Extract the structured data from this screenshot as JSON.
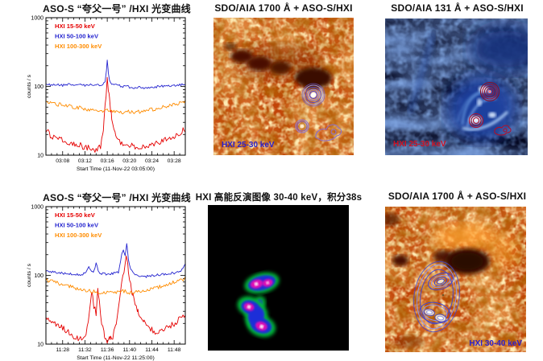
{
  "figure": {
    "background": "#ffffff"
  },
  "chart_data": [
    {
      "type": "line",
      "title": "ASO-S “夸父一号” /HXI 光变曲线",
      "xlabel": "Start Time (11-Nov-22 03:05:00)",
      "ylabel": "counts / s",
      "yscale": "log",
      "xlim": [
        0,
        25
      ],
      "ylim": [
        10,
        1000
      ],
      "x_unit": "minutes after 03:05:00",
      "grid": false,
      "legend_position": "top-left",
      "xticks": [
        {
          "x": 3,
          "label": "03:08"
        },
        {
          "x": 7,
          "label": "03:12"
        },
        {
          "x": 11,
          "label": "03:16"
        },
        {
          "x": 15,
          "label": "03:20"
        },
        {
          "x": 19,
          "label": "03:24"
        },
        {
          "x": 23,
          "label": "03:28"
        }
      ],
      "yticks": [
        {
          "y": 10,
          "label": "10"
        },
        {
          "y": 100,
          "label": "100"
        },
        {
          "y": 1000,
          "label": "1000"
        }
      ],
      "series": [
        {
          "name": "HXI 15-50 keV",
          "color": "#e50000",
          "points": [
            [
              0,
              23
            ],
            [
              1,
              19
            ],
            [
              2,
              17
            ],
            [
              3,
              17
            ],
            [
              4,
              15
            ],
            [
              5,
              14
            ],
            [
              6,
              14
            ],
            [
              7,
              13
            ],
            [
              8,
              13
            ],
            [
              9,
              12
            ],
            [
              9.8,
              13
            ],
            [
              10.3,
              25
            ],
            [
              10.6,
              50
            ],
            [
              11,
              125
            ],
            [
              11.3,
              75
            ],
            [
              11.7,
              40
            ],
            [
              12,
              26
            ],
            [
              12.5,
              19
            ],
            [
              13,
              16
            ],
            [
              14,
              15
            ],
            [
              15,
              14
            ],
            [
              16,
              13
            ],
            [
              17,
              13
            ],
            [
              18,
              13
            ],
            [
              19,
              14
            ],
            [
              20,
              15
            ],
            [
              21,
              16
            ],
            [
              22,
              17
            ],
            [
              23,
              19
            ],
            [
              24,
              21
            ],
            [
              25,
              24
            ]
          ]
        },
        {
          "name": "HXI 50-100 keV",
          "color": "#2424cf",
          "points": [
            [
              0,
              108
            ],
            [
              1,
              106
            ],
            [
              2,
              108
            ],
            [
              3,
              104
            ],
            [
              4,
              107
            ],
            [
              5,
              104
            ],
            [
              6,
              106
            ],
            [
              7,
              103
            ],
            [
              8,
              105
            ],
            [
              9,
              104
            ],
            [
              10,
              106
            ],
            [
              10.6,
              112
            ],
            [
              10.85,
              170
            ],
            [
              11,
              245
            ],
            [
              11.15,
              170
            ],
            [
              11.4,
              120
            ],
            [
              12,
              107
            ],
            [
              13,
              103
            ],
            [
              14,
              100
            ],
            [
              15,
              98
            ],
            [
              16,
              96
            ],
            [
              17,
              97
            ],
            [
              18,
              95
            ],
            [
              19,
              97
            ],
            [
              20,
              99
            ],
            [
              21,
              101
            ],
            [
              22,
              102
            ],
            [
              23,
              104
            ],
            [
              24,
              105
            ],
            [
              25,
              108
            ]
          ]
        },
        {
          "name": "HXI 100-300 keV",
          "color": "#ff8c00",
          "points": [
            [
              0,
              60
            ],
            [
              1,
              57
            ],
            [
              2,
              55
            ],
            [
              3,
              54
            ],
            [
              4,
              52
            ],
            [
              5,
              50
            ],
            [
              6,
              49
            ],
            [
              7,
              47
            ],
            [
              8,
              46
            ],
            [
              9,
              45
            ],
            [
              10,
              44
            ],
            [
              11,
              45
            ],
            [
              12,
              43
            ],
            [
              13,
              42
            ],
            [
              14,
              42
            ],
            [
              15,
              43
            ],
            [
              16,
              42
            ],
            [
              17,
              43
            ],
            [
              18,
              45
            ],
            [
              19,
              46
            ],
            [
              20,
              48
            ],
            [
              21,
              50
            ],
            [
              22,
              53
            ],
            [
              23,
              55
            ],
            [
              24,
              58
            ],
            [
              25,
              62
            ]
          ]
        }
      ]
    },
    {
      "type": "line",
      "title": "ASO-S “夸父一号” /HXI 光变曲线",
      "xlabel": "Start Time (11-Nov-22 11:25:00)",
      "ylabel": "counts / s",
      "yscale": "log",
      "xlim": [
        0,
        25
      ],
      "ylim": [
        10,
        1000
      ],
      "x_unit": "minutes after 11:25:00",
      "grid": false,
      "legend_position": "top-left",
      "xticks": [
        {
          "x": 3,
          "label": "11:28"
        },
        {
          "x": 7,
          "label": "11:32"
        },
        {
          "x": 11,
          "label": "11:36"
        },
        {
          "x": 15,
          "label": "11:40"
        },
        {
          "x": 19,
          "label": "11:44"
        },
        {
          "x": 23,
          "label": "11:48"
        }
      ],
      "yticks": [
        {
          "y": 10,
          "label": "10"
        },
        {
          "y": 100,
          "label": "100"
        },
        {
          "y": 1000,
          "label": "1000"
        }
      ],
      "series": [
        {
          "name": "HXI 15-50 keV",
          "color": "#e50000",
          "points": [
            [
              0,
              26
            ],
            [
              1,
              22
            ],
            [
              2,
              19
            ],
            [
              3,
              17
            ],
            [
              4,
              15
            ],
            [
              5,
              13
            ],
            [
              6,
              12
            ],
            [
              7,
              13
            ],
            [
              7.6,
              20
            ],
            [
              8,
              45
            ],
            [
              8.3,
              58
            ],
            [
              8.6,
              36
            ],
            [
              9,
              28
            ],
            [
              9.3,
              60
            ],
            [
              9.6,
              42
            ],
            [
              10,
              20
            ],
            [
              10.5,
              13
            ],
            [
              11,
              11
            ],
            [
              11.5,
              12
            ],
            [
              12,
              13
            ],
            [
              12.5,
              18
            ],
            [
              13,
              35
            ],
            [
              13.5,
              70
            ],
            [
              14,
              120
            ],
            [
              14.4,
              190
            ],
            [
              14.7,
              140
            ],
            [
              15,
              85
            ],
            [
              15.5,
              55
            ],
            [
              16,
              38
            ],
            [
              16.5,
              30
            ],
            [
              17,
              24
            ],
            [
              17.5,
              21
            ],
            [
              18,
              18
            ],
            [
              19,
              16
            ],
            [
              20,
              15
            ],
            [
              21,
              16
            ],
            [
              22,
              18
            ],
            [
              23,
              20
            ],
            [
              24,
              23
            ],
            [
              25,
              27
            ]
          ]
        },
        {
          "name": "HXI 50-100 keV",
          "color": "#2424cf",
          "points": [
            [
              0,
              116
            ],
            [
              1,
              113
            ],
            [
              2,
              110
            ],
            [
              3,
              108
            ],
            [
              4,
              106
            ],
            [
              5,
              104
            ],
            [
              6,
              103
            ],
            [
              7,
              106
            ],
            [
              7.7,
              130
            ],
            [
              8,
              116
            ],
            [
              8.5,
              112
            ],
            [
              9,
              148
            ],
            [
              9.3,
              124
            ],
            [
              9.7,
              110
            ],
            [
              10,
              106
            ],
            [
              11,
              104
            ],
            [
              12,
              106
            ],
            [
              13,
              112
            ],
            [
              13.6,
              200
            ],
            [
              13.9,
              228
            ],
            [
              14.2,
              190
            ],
            [
              14.5,
              295
            ],
            [
              14.8,
              170
            ],
            [
              15.2,
              125
            ],
            [
              15.6,
              108
            ],
            [
              16,
              100
            ],
            [
              17,
              97
            ],
            [
              18,
              96
            ],
            [
              19,
              99
            ],
            [
              20,
              102
            ],
            [
              21,
              104
            ],
            [
              22,
              107
            ],
            [
              23,
              109
            ],
            [
              24,
              112
            ],
            [
              25,
              145
            ]
          ]
        },
        {
          "name": "HXI 100-300 keV",
          "color": "#ff8c00",
          "points": [
            [
              0,
              85
            ],
            [
              1,
              82
            ],
            [
              2,
              78
            ],
            [
              3,
              74
            ],
            [
              4,
              70
            ],
            [
              5,
              66
            ],
            [
              6,
              63
            ],
            [
              7,
              61
            ],
            [
              8,
              59
            ],
            [
              9,
              58
            ],
            [
              10,
              57
            ],
            [
              11,
              56
            ],
            [
              12,
              57
            ],
            [
              13,
              58
            ],
            [
              14,
              59
            ],
            [
              15,
              55
            ],
            [
              16,
              57
            ],
            [
              17,
              58
            ],
            [
              18,
              60
            ],
            [
              19,
              63
            ],
            [
              20,
              67
            ],
            [
              21,
              71
            ],
            [
              22,
              75
            ],
            [
              23,
              79
            ],
            [
              24,
              84
            ],
            [
              25,
              90
            ]
          ]
        }
      ]
    }
  ],
  "images": {
    "aia1700_top": {
      "title": "SDO/AIA 1700 Å + ASO-S/HXI",
      "overlay_label": "HXI 25-30 keV",
      "overlay_color": "#2a22cc",
      "contour_color": "#5646cc"
    },
    "aia131_top": {
      "title": "SDO/AIA 131 Å + ASO-S/HXI",
      "overlay_label": "HXI 25-30 keV",
      "overlay_color": "#cc1122",
      "contour_color": "#b0102c"
    },
    "hxi_image": {
      "title": "HXI 高能反演图像 30-40 keV，积分38s"
    },
    "aia1700_bottom": {
      "title": "SDO/AIA 1700 Å + ASO-S/HXI",
      "overlay_label": "HXI 30-40 keV",
      "overlay_color": "#2a22cc",
      "contour_color": "#3c44d4"
    }
  }
}
